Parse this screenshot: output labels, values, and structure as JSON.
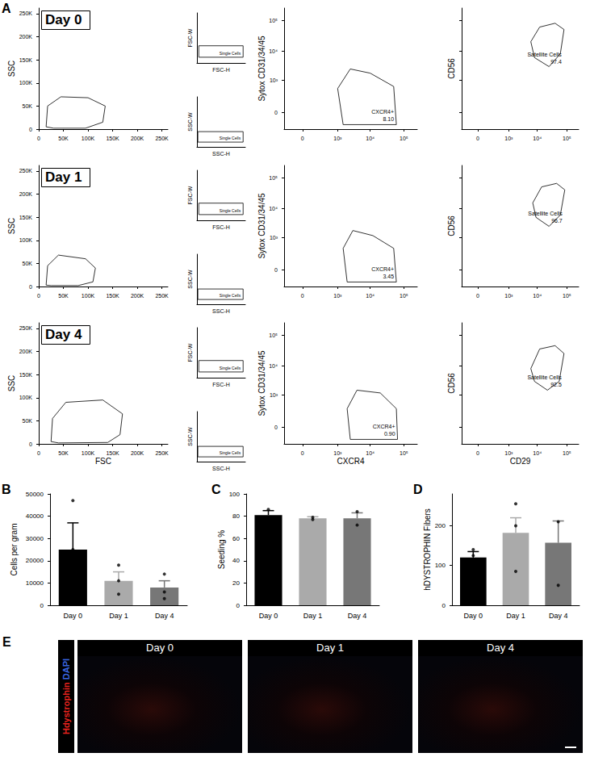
{
  "panel_letters": [
    "A",
    "B",
    "C",
    "D",
    "E"
  ],
  "micrographs": {
    "titles": [
      "Day 0",
      "Day 1",
      "Day 4"
    ],
    "stain": [
      {
        "text": "Hdystrophin",
        "color": "#e8231e"
      },
      {
        "text": "DAPI",
        "color": "#3a66e0"
      }
    ]
  },
  "chart_data": [
    {
      "type": "scatter",
      "annotation": "Day 0",
      "y_label": "SSC",
      "xlim": [
        0,
        262144
      ],
      "ylim": [
        0,
        262144
      ],
      "xticks": [
        0,
        {
          "value": 50000,
          "label": "50K"
        },
        {
          "value": 100000,
          "label": "100K"
        },
        {
          "value": 150000,
          "label": "150K"
        },
        {
          "value": 200000,
          "label": "200K"
        },
        {
          "value": 250000,
          "label": "250K"
        }
      ],
      "yticks": [
        0,
        {
          "value": 50000,
          "label": "50K"
        },
        {
          "value": 100000,
          "label": "100K"
        },
        {
          "value": 150000,
          "label": "150K"
        },
        {
          "value": 200000,
          "label": "200K"
        },
        {
          "value": 250000,
          "label": "250K"
        }
      ],
      "gates": [
        {
          "polygon": [
            [
              15000,
              5000
            ],
            [
              18000,
              50000
            ],
            [
              45000,
              70000
            ],
            [
              100000,
              68000
            ],
            [
              135000,
              50000
            ],
            [
              130000,
              15000
            ],
            [
              95000,
              2000
            ],
            [
              30000,
              2000
            ]
          ]
        }
      ]
    },
    {
      "type": "scatter",
      "x_label": "FSC-H",
      "y_label": "FSC-W",
      "xlim": [
        0,
        262144
      ],
      "ylim": [
        0,
        262144
      ],
      "tick_labels": false,
      "gates": [
        {
          "polygon": [
            [
              10000,
              30000
            ],
            [
              10000,
              90000
            ],
            [
              250000,
              90000
            ],
            [
              250000,
              30000
            ]
          ],
          "label": "Single Cells"
        }
      ]
    },
    {
      "type": "scatter",
      "x_label": "SSC-H",
      "y_label": "SSC-W",
      "xlim": [
        0,
        262144
      ],
      "ylim": [
        0,
        262144
      ],
      "tick_labels": false,
      "gates": [
        {
          "polygon": [
            [
              5000,
              25000
            ],
            [
              5000,
              80000
            ],
            [
              250000,
              80000
            ],
            [
              250000,
              25000
            ]
          ],
          "label": "Single Cells"
        }
      ]
    },
    {
      "type": "scatter",
      "log": true,
      "y_label": "Sytox CD31/34/45",
      "xlim": [
        -250,
        250000
      ],
      "ylim": [
        -250,
        250000
      ],
      "xticks": [
        0,
        {
          "value": 1000,
          "label": "10³"
        },
        {
          "value": 10000,
          "label": "10⁴"
        },
        {
          "value": 100000,
          "label": "10⁵"
        }
      ],
      "yticks": [
        0,
        {
          "value": 1000,
          "label": "10³"
        },
        {
          "value": 10000,
          "label": "10⁴"
        },
        {
          "value": 100000,
          "label": "10⁵"
        }
      ],
      "gates": [
        {
          "polygon": [
            [
              1500,
              -150
            ],
            [
              1000,
              500
            ],
            [
              2500,
              2500
            ],
            [
              10000,
              1800
            ],
            [
              50000,
              600
            ],
            [
              60000,
              -150
            ]
          ],
          "label": "CXCR4+",
          "percent": "8.10"
        }
      ]
    },
    {
      "type": "scatter",
      "log": true,
      "tick_labels": "x",
      "y_label": "CD56",
      "xlim": [
        -250,
        250000
      ],
      "ylim": [
        -250,
        250000
      ],
      "xticks": [
        0,
        {
          "value": 1000,
          "label": "10³"
        },
        {
          "value": 10000,
          "label": "10⁴"
        },
        {
          "value": 100000,
          "label": "10⁵"
        }
      ],
      "yticks": [
        0,
        1000,
        10000,
        100000
      ],
      "gates": [
        {
          "polygon": [
            [
              6000,
              20000
            ],
            [
              12000,
              60000
            ],
            [
              40000,
              80000
            ],
            [
              80000,
              50000
            ],
            [
              60000,
              8000
            ],
            [
              25000,
              3000
            ],
            [
              8000,
              6000
            ]
          ],
          "label": "Satellite Cells",
          "percent": "97.4"
        }
      ]
    },
    {
      "type": "scatter",
      "annotation": "Day 1",
      "y_label": "SSC",
      "xlim": [
        0,
        262144
      ],
      "ylim": [
        0,
        262144
      ],
      "xticks": [
        0,
        {
          "value": 50000,
          "label": "50K"
        },
        {
          "value": 100000,
          "label": "100K"
        },
        {
          "value": 150000,
          "label": "150K"
        },
        {
          "value": 200000,
          "label": "200K"
        },
        {
          "value": 250000,
          "label": "250K"
        }
      ],
      "yticks": [
        0,
        {
          "value": 50000,
          "label": "50K"
        },
        {
          "value": 100000,
          "label": "100K"
        },
        {
          "value": 150000,
          "label": "150K"
        },
        {
          "value": 200000,
          "label": "200K"
        },
        {
          "value": 250000,
          "label": "250K"
        }
      ],
      "gates": [
        {
          "polygon": [
            [
              15000,
              3000
            ],
            [
              18000,
              45000
            ],
            [
              40000,
              68000
            ],
            [
              95000,
              60000
            ],
            [
              115000,
              40000
            ],
            [
              110000,
              10000
            ],
            [
              80000,
              2000
            ],
            [
              25000,
              2000
            ]
          ]
        }
      ]
    },
    {
      "type": "scatter",
      "x_label": "FSC-H",
      "y_label": "FSC-W",
      "xlim": [
        0,
        262144
      ],
      "ylim": [
        0,
        262144
      ],
      "tick_labels": false,
      "gates": [
        {
          "polygon": [
            [
              10000,
              30000
            ],
            [
              10000,
              90000
            ],
            [
              250000,
              90000
            ],
            [
              250000,
              30000
            ]
          ],
          "label": "Single Cells"
        }
      ]
    },
    {
      "type": "scatter",
      "x_label": "SSC-H",
      "y_label": "SSC-W",
      "xlim": [
        0,
        262144
      ],
      "ylim": [
        0,
        262144
      ],
      "tick_labels": false,
      "gates": [
        {
          "polygon": [
            [
              5000,
              25000
            ],
            [
              5000,
              80000
            ],
            [
              250000,
              80000
            ],
            [
              250000,
              25000
            ]
          ],
          "label": "Single Cells"
        }
      ]
    },
    {
      "type": "scatter",
      "log": true,
      "y_label": "Sytox CD31/34/45",
      "xlim": [
        -250,
        250000
      ],
      "ylim": [
        -250,
        250000
      ],
      "xticks": [
        0,
        {
          "value": 1000,
          "label": "10³"
        },
        {
          "value": 10000,
          "label": "10⁴"
        },
        {
          "value": 100000,
          "label": "10⁵"
        }
      ],
      "yticks": [
        0,
        {
          "value": 1000,
          "label": "10³"
        },
        {
          "value": 10000,
          "label": "10⁴"
        },
        {
          "value": 100000,
          "label": "10⁵"
        }
      ],
      "gates": [
        {
          "polygon": [
            [
              2000,
              -150
            ],
            [
              1500,
              400
            ],
            [
              3000,
              1800
            ],
            [
              12000,
              1200
            ],
            [
              50000,
              400
            ],
            [
              60000,
              -150
            ]
          ],
          "label": "CXCR4+",
          "percent": "3.45"
        }
      ]
    },
    {
      "type": "scatter",
      "log": true,
      "tick_labels": "x",
      "y_label": "CD56",
      "xlim": [
        -250,
        250000
      ],
      "ylim": [
        -250,
        250000
      ],
      "xticks": [
        0,
        {
          "value": 1000,
          "label": "10³"
        },
        {
          "value": 10000,
          "label": "10⁴"
        },
        {
          "value": 100000,
          "label": "10⁵"
        }
      ],
      "yticks": [
        0,
        1000,
        10000,
        100000
      ],
      "gates": [
        {
          "polygon": [
            [
              7000,
              15000
            ],
            [
              14000,
              50000
            ],
            [
              45000,
              65000
            ],
            [
              85000,
              40000
            ],
            [
              60000,
              6000
            ],
            [
              25000,
              2500
            ],
            [
              9000,
              5000
            ]
          ],
          "label": "Satellite Cells",
          "percent": "96.7"
        }
      ]
    },
    {
      "type": "scatter",
      "annotation": "Day 4",
      "x_label": "FSC",
      "y_label": "SSC",
      "xlim": [
        0,
        262144
      ],
      "ylim": [
        0,
        262144
      ],
      "xticks": [
        0,
        {
          "value": 50000,
          "label": "50K"
        },
        {
          "value": 100000,
          "label": "100K"
        },
        {
          "value": 150000,
          "label": "150K"
        },
        {
          "value": 200000,
          "label": "200K"
        },
        {
          "value": 250000,
          "label": "250K"
        }
      ],
      "yticks": [
        0,
        {
          "value": 50000,
          "label": "50K"
        },
        {
          "value": 100000,
          "label": "100K"
        },
        {
          "value": 150000,
          "label": "150K"
        },
        {
          "value": 200000,
          "label": "200K"
        },
        {
          "value": 250000,
          "label": "250K"
        }
      ],
      "gates": [
        {
          "polygon": [
            [
              25000,
              5000
            ],
            [
              28000,
              55000
            ],
            [
              55000,
              90000
            ],
            [
              130000,
              95000
            ],
            [
              170000,
              65000
            ],
            [
              165000,
              20000
            ],
            [
              140000,
              3000
            ],
            [
              40000,
              2000
            ]
          ]
        }
      ]
    },
    {
      "type": "scatter",
      "x_label": "FSC-H",
      "y_label": "FSC-W",
      "xlim": [
        0,
        262144
      ],
      "ylim": [
        0,
        262144
      ],
      "tick_labels": false,
      "gates": [
        {
          "polygon": [
            [
              10000,
              30000
            ],
            [
              10000,
              90000
            ],
            [
              250000,
              90000
            ],
            [
              250000,
              30000
            ]
          ],
          "label": "Single Cells"
        }
      ]
    },
    {
      "type": "scatter",
      "x_label": "SSC-H",
      "y_label": "SSC-W",
      "xlim": [
        0,
        262144
      ],
      "ylim": [
        0,
        262144
      ],
      "tick_labels": false,
      "gates": [
        {
          "polygon": [
            [
              5000,
              25000
            ],
            [
              5000,
              80000
            ],
            [
              250000,
              80000
            ],
            [
              250000,
              25000
            ]
          ],
          "label": "Single Cells"
        }
      ]
    },
    {
      "type": "scatter",
      "log": true,
      "x_label": "CXCR4",
      "y_label": "Sytox CD31/34/45",
      "xlim": [
        -250,
        250000
      ],
      "ylim": [
        -250,
        250000
      ],
      "xticks": [
        0,
        {
          "value": 1000,
          "label": "10³"
        },
        {
          "value": 10000,
          "label": "10⁴"
        },
        {
          "value": 100000,
          "label": "10⁵"
        }
      ],
      "yticks": [
        0,
        {
          "value": 1000,
          "label": "10³"
        },
        {
          "value": 10000,
          "label": "10⁴"
        },
        {
          "value": 100000,
          "label": "10⁵"
        }
      ],
      "gates": [
        {
          "polygon": [
            [
              2500,
              -150
            ],
            [
              2000,
              300
            ],
            [
              4000,
              1500
            ],
            [
              20000,
              1200
            ],
            [
              60000,
              300
            ],
            [
              65000,
              -150
            ]
          ],
          "label": "CXCR4+",
          "percent": "0.90"
        }
      ]
    },
    {
      "type": "scatter",
      "log": true,
      "tick_labels": "x",
      "x_label": "CD29",
      "y_label": "CD56",
      "xlim": [
        -250,
        250000
      ],
      "ylim": [
        -250,
        250000
      ],
      "xticks": [
        0,
        {
          "value": 1000,
          "label": "10³"
        },
        {
          "value": 10000,
          "label": "10⁴"
        },
        {
          "value": 100000,
          "label": "10⁵"
        }
      ],
      "yticks": [
        0,
        1000,
        10000,
        100000
      ],
      "gates": [
        {
          "polygon": [
            [
              6000,
              8000
            ],
            [
              12000,
              35000
            ],
            [
              40000,
              45000
            ],
            [
              80000,
              25000
            ],
            [
              55000,
              3000
            ],
            [
              22000,
              1500
            ],
            [
              8000,
              3000
            ]
          ],
          "label": "Satellite Cells",
          "percent": "92.5"
        }
      ]
    },
    {
      "type": "bar",
      "y_label": "Cells per gram",
      "categories": [
        "Day 0",
        "Day 1",
        "Day 4"
      ],
      "values": [
        25000,
        11000,
        8000
      ],
      "errors": [
        12000,
        4000,
        3000
      ],
      "points": [
        [
          47000,
          25000,
          3000
        ],
        [
          18000,
          11000,
          5000
        ],
        [
          14000,
          6000,
          3000
        ]
      ],
      "colors": [
        "#000000",
        "#aaaaaa",
        "#777777"
      ],
      "ylim": [
        0,
        50000
      ],
      "yticks": [
        0,
        10000,
        20000,
        30000,
        40000,
        50000
      ],
      "grid": false
    },
    {
      "type": "bar",
      "y_label": "Seeding %",
      "categories": [
        "Day 0",
        "Day 1",
        "Day 4"
      ],
      "values": [
        81,
        78,
        78
      ],
      "errors": [
        4,
        1.5,
        5
      ],
      "points": [
        [
          86,
          77
        ],
        [
          79,
          77
        ],
        [
          84,
          72
        ]
      ],
      "colors": [
        "#000000",
        "#aaaaaa",
        "#777777"
      ],
      "ylim": [
        0,
        100
      ],
      "yticks": [
        0,
        20,
        40,
        60,
        80,
        100
      ],
      "grid": false
    },
    {
      "type": "bar",
      "y_label": "hDYSTROPHIN Fibers",
      "categories": [
        "Day 0",
        "Day 1",
        "Day 4"
      ],
      "values": [
        120,
        182,
        157
      ],
      "errors": [
        15,
        38,
        55
      ],
      "points": [
        [
          140,
          125,
          65
        ],
        [
          255,
          200,
          85
        ],
        [
          210,
          50
        ]
      ],
      "colors": [
        "#000000",
        "#aaaaaa",
        "#777777"
      ],
      "ylim": [
        0,
        280
      ],
      "yticks": [
        0,
        100,
        200
      ],
      "grid": false
    }
  ]
}
